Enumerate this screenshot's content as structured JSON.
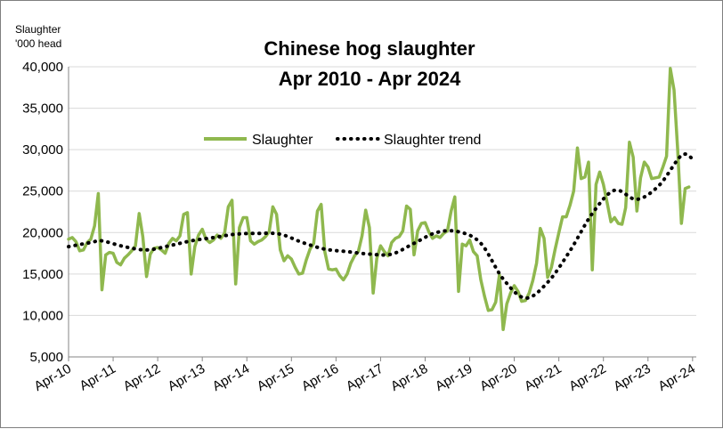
{
  "chart_data": {
    "type": "line",
    "title": "Chinese hog slaughter",
    "subtitle": "Apr 2010 - Apr 2024",
    "ylabel": "Slaughter",
    "yunit": "'000 head",
    "ylim": [
      5000,
      40000
    ],
    "yticks": [
      5000,
      10000,
      15000,
      20000,
      25000,
      30000,
      35000,
      40000
    ],
    "ytick_labels": [
      "5,000",
      "10,000",
      "15,000",
      "20,000",
      "25,000",
      "30,000",
      "35,000",
      "40,000"
    ],
    "xlim": [
      "2010-04",
      "2024-05"
    ],
    "xtick_labels": [
      "Apr-10",
      "Apr-11",
      "Apr-12",
      "Apr-13",
      "Apr-14",
      "Apr-15",
      "Apr-16",
      "Apr-17",
      "Apr-18",
      "Apr-19",
      "Apr-20",
      "Apr-21",
      "Apr-22",
      "Apr-23",
      "Apr-24"
    ],
    "xtick_dates": [
      "2010-04",
      "2011-04",
      "2012-04",
      "2013-04",
      "2014-04",
      "2015-04",
      "2016-04",
      "2017-04",
      "2018-04",
      "2019-04",
      "2020-04",
      "2021-04",
      "2022-04",
      "2023-04",
      "2024-04"
    ],
    "grid": "horizontal",
    "legend": "top-center",
    "colors": {
      "slaughter": "#8fb84e",
      "trend": "#000000",
      "grid": "#d9d9d9",
      "axis": "#868686"
    },
    "series": [
      {
        "name": "Slaughter",
        "style": "solid",
        "points": [
          [
            "2010-04",
            19200
          ],
          [
            "2010-05",
            19400
          ],
          [
            "2010-06",
            18900
          ],
          [
            "2010-07",
            17800
          ],
          [
            "2010-08",
            17900
          ],
          [
            "2010-09",
            18800
          ],
          [
            "2010-10",
            19200
          ],
          [
            "2010-11",
            20800
          ],
          [
            "2010-12",
            24700
          ],
          [
            "2011-01",
            13100
          ],
          [
            "2011-02",
            17300
          ],
          [
            "2011-03",
            17600
          ],
          [
            "2011-04",
            17500
          ],
          [
            "2011-05",
            16400
          ],
          [
            "2011-06",
            16100
          ],
          [
            "2011-07",
            16900
          ],
          [
            "2011-08",
            17300
          ],
          [
            "2011-09",
            17800
          ],
          [
            "2011-10",
            18400
          ],
          [
            "2011-11",
            22300
          ],
          [
            "2011-12",
            19500
          ],
          [
            "2012-01",
            14700
          ],
          [
            "2012-02",
            17400
          ],
          [
            "2012-03",
            18100
          ],
          [
            "2012-04",
            18200
          ],
          [
            "2012-05",
            17900
          ],
          [
            "2012-06",
            17500
          ],
          [
            "2012-07",
            18700
          ],
          [
            "2012-08",
            19300
          ],
          [
            "2012-09",
            19000
          ],
          [
            "2012-10",
            19600
          ],
          [
            "2012-11",
            22200
          ],
          [
            "2012-12",
            22400
          ],
          [
            "2013-01",
            15000
          ],
          [
            "2013-02",
            18300
          ],
          [
            "2013-03",
            19700
          ],
          [
            "2013-04",
            20400
          ],
          [
            "2013-05",
            19200
          ],
          [
            "2013-06",
            18800
          ],
          [
            "2013-07",
            19100
          ],
          [
            "2013-08",
            19700
          ],
          [
            "2013-09",
            19300
          ],
          [
            "2013-10",
            19900
          ],
          [
            "2013-11",
            23100
          ],
          [
            "2013-12",
            23900
          ],
          [
            "2014-01",
            13800
          ],
          [
            "2014-02",
            20600
          ],
          [
            "2014-03",
            21800
          ],
          [
            "2014-04",
            21800
          ],
          [
            "2014-05",
            19000
          ],
          [
            "2014-06",
            18600
          ],
          [
            "2014-07",
            18900
          ],
          [
            "2014-08",
            19100
          ],
          [
            "2014-09",
            19500
          ],
          [
            "2014-10",
            20100
          ],
          [
            "2014-11",
            23100
          ],
          [
            "2014-12",
            22200
          ],
          [
            "2015-01",
            17900
          ],
          [
            "2015-02",
            16600
          ],
          [
            "2015-03",
            17200
          ],
          [
            "2015-04",
            16800
          ],
          [
            "2015-05",
            15800
          ],
          [
            "2015-06",
            15000
          ],
          [
            "2015-07",
            15100
          ],
          [
            "2015-08",
            16700
          ],
          [
            "2015-09",
            18000
          ],
          [
            "2015-10",
            18700
          ],
          [
            "2015-11",
            22600
          ],
          [
            "2015-12",
            23400
          ],
          [
            "2016-01",
            17700
          ],
          [
            "2016-02",
            15600
          ],
          [
            "2016-03",
            15500
          ],
          [
            "2016-04",
            15600
          ],
          [
            "2016-05",
            14800
          ],
          [
            "2016-06",
            14300
          ],
          [
            "2016-07",
            15000
          ],
          [
            "2016-08",
            16300
          ],
          [
            "2016-09",
            17200
          ],
          [
            "2016-10",
            17700
          ],
          [
            "2016-11",
            19600
          ],
          [
            "2016-12",
            22700
          ],
          [
            "2017-01",
            20600
          ],
          [
            "2017-02",
            12700
          ],
          [
            "2017-03",
            16900
          ],
          [
            "2017-04",
            18400
          ],
          [
            "2017-05",
            17700
          ],
          [
            "2017-06",
            17200
          ],
          [
            "2017-07",
            18800
          ],
          [
            "2017-08",
            19300
          ],
          [
            "2017-09",
            19500
          ],
          [
            "2017-10",
            20200
          ],
          [
            "2017-11",
            23200
          ],
          [
            "2017-12",
            22800
          ],
          [
            "2018-01",
            17300
          ],
          [
            "2018-02",
            20200
          ],
          [
            "2018-03",
            21100
          ],
          [
            "2018-04",
            21200
          ],
          [
            "2018-05",
            20100
          ],
          [
            "2018-06",
            19300
          ],
          [
            "2018-07",
            19600
          ],
          [
            "2018-08",
            19400
          ],
          [
            "2018-09",
            19900
          ],
          [
            "2018-10",
            20200
          ],
          [
            "2018-11",
            22600
          ],
          [
            "2018-12",
            24300
          ],
          [
            "2019-01",
            12900
          ],
          [
            "2019-02",
            18600
          ],
          [
            "2019-03",
            18400
          ],
          [
            "2019-04",
            19100
          ],
          [
            "2019-05",
            17700
          ],
          [
            "2019-06",
            17200
          ],
          [
            "2019-07",
            14300
          ],
          [
            "2019-08",
            12300
          ],
          [
            "2019-09",
            10600
          ],
          [
            "2019-10",
            10700
          ],
          [
            "2019-11",
            11600
          ],
          [
            "2019-12",
            14900
          ],
          [
            "2020-01",
            8300
          ],
          [
            "2020-02",
            11400
          ],
          [
            "2020-03",
            12700
          ],
          [
            "2020-04",
            13600
          ],
          [
            "2020-05",
            12900
          ],
          [
            "2020-06",
            11700
          ],
          [
            "2020-07",
            11800
          ],
          [
            "2020-08",
            12700
          ],
          [
            "2020-09",
            14200
          ],
          [
            "2020-10",
            16300
          ],
          [
            "2020-11",
            20500
          ],
          [
            "2020-12",
            19300
          ],
          [
            "2021-01",
            14600
          ],
          [
            "2021-02",
            15800
          ],
          [
            "2021-03",
            18000
          ],
          [
            "2021-04",
            20000
          ],
          [
            "2021-05",
            21900
          ],
          [
            "2021-06",
            21900
          ],
          [
            "2021-07",
            23300
          ],
          [
            "2021-08",
            25000
          ],
          [
            "2021-09",
            30200
          ],
          [
            "2021-10",
            26500
          ],
          [
            "2021-11",
            26700
          ],
          [
            "2021-12",
            28500
          ],
          [
            "2022-01",
            15500
          ],
          [
            "2022-02",
            25800
          ],
          [
            "2022-03",
            27300
          ],
          [
            "2022-04",
            25800
          ],
          [
            "2022-05",
            23600
          ],
          [
            "2022-06",
            21300
          ],
          [
            "2022-07",
            21800
          ],
          [
            "2022-08",
            21100
          ],
          [
            "2022-09",
            21000
          ],
          [
            "2022-10",
            23000
          ],
          [
            "2022-11",
            30900
          ],
          [
            "2022-12",
            29100
          ],
          [
            "2023-01",
            22600
          ],
          [
            "2023-02",
            26600
          ],
          [
            "2023-03",
            28500
          ],
          [
            "2023-04",
            27900
          ],
          [
            "2023-05",
            26500
          ],
          [
            "2023-06",
            26600
          ],
          [
            "2023-07",
            26700
          ],
          [
            "2023-08",
            27900
          ],
          [
            "2023-09",
            29200
          ],
          [
            "2023-10",
            39800
          ],
          [
            "2023-11",
            37200
          ],
          [
            "2023-12",
            30000
          ],
          [
            "2024-01",
            21100
          ],
          [
            "2024-02",
            25300
          ],
          [
            "2024-03",
            25500
          ]
        ]
      },
      {
        "name": "Slaughter trend",
        "style": "dotted",
        "points": [
          [
            "2010-04",
            18300
          ],
          [
            "2010-10",
            18800
          ],
          [
            "2011-01",
            19000
          ],
          [
            "2011-07",
            18300
          ],
          [
            "2012-01",
            17900
          ],
          [
            "2012-07",
            18400
          ],
          [
            "2013-01",
            19000
          ],
          [
            "2013-07",
            19400
          ],
          [
            "2014-01",
            19800
          ],
          [
            "2014-07",
            19900
          ],
          [
            "2015-01",
            19800
          ],
          [
            "2015-07",
            18800
          ],
          [
            "2016-01",
            18000
          ],
          [
            "2016-07",
            17700
          ],
          [
            "2017-01",
            17400
          ],
          [
            "2017-07",
            17400
          ],
          [
            "2018-01",
            18700
          ],
          [
            "2018-07",
            20000
          ],
          [
            "2019-01",
            20100
          ],
          [
            "2019-07",
            18700
          ],
          [
            "2020-01",
            14400
          ],
          [
            "2020-07",
            12100
          ],
          [
            "2021-01",
            14000
          ],
          [
            "2021-07",
            17800
          ],
          [
            "2022-01",
            22300
          ],
          [
            "2022-07",
            25100
          ],
          [
            "2023-01",
            24000
          ],
          [
            "2023-07",
            25700
          ],
          [
            "2024-01",
            29300
          ],
          [
            "2024-04",
            28900
          ]
        ]
      }
    ]
  }
}
